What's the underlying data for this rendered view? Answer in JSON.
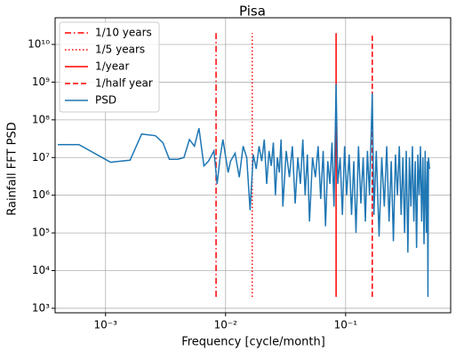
{
  "chart_data": {
    "type": "line",
    "title": "Pisa",
    "xlabel": "Frequency [cycle/month]",
    "ylabel": "Rainfall FFT PSD",
    "xscale": "log",
    "yscale": "log",
    "xlim": [
      0.00038,
      0.75
    ],
    "ylim": [
      760,
      51000000000
    ],
    "xticks": [
      {
        "value": 0.001,
        "label": "10⁻³"
      },
      {
        "value": 0.01,
        "label": "10⁻²"
      },
      {
        "value": 0.1,
        "label": "10⁻¹"
      }
    ],
    "yticks": [
      {
        "value": 1000,
        "label": "10³"
      },
      {
        "value": 10000,
        "label": "10⁴"
      },
      {
        "value": 100000,
        "label": "10⁵"
      },
      {
        "value": 1000000,
        "label": "10⁶"
      },
      {
        "value": 10000000,
        "label": "10⁷"
      },
      {
        "value": 100000000,
        "label": "10⁸"
      },
      {
        "value": 1000000000,
        "label": "10⁹"
      },
      {
        "value": 10000000000,
        "label": "10¹⁰"
      }
    ],
    "grid": true,
    "legend": "upper left",
    "series": [
      {
        "name": "1/10 years",
        "color": "#ff0000",
        "linestyle": "dashdot",
        "x": [
          0.00833,
          0.00833
        ],
        "values": [
          2000,
          20000000000
        ]
      },
      {
        "name": "1/5 years",
        "color": "#ff0000",
        "linestyle": "dotted",
        "x": [
          0.01667,
          0.01667
        ],
        "values": [
          2000,
          20000000000
        ]
      },
      {
        "name": "1/year",
        "color": "#ff0000",
        "linestyle": "solid",
        "x": [
          0.0833,
          0.0833
        ],
        "values": [
          2000,
          20000000000
        ]
      },
      {
        "name": "1/half year",
        "color": "#ff0000",
        "linestyle": "dashed",
        "x": [
          0.1667,
          0.1667
        ],
        "values": [
          2000,
          20000000000
        ]
      },
      {
        "name": "PSD",
        "color": "#1f77b4",
        "linestyle": "solid",
        "x": [
          0.0004,
          0.0006,
          0.0011,
          0.0016,
          0.002,
          0.0026,
          0.003,
          0.0034,
          0.004,
          0.0045,
          0.005,
          0.0055,
          0.006,
          0.0066,
          0.0072,
          0.008,
          0.0085,
          0.009,
          0.0095,
          0.0105,
          0.011,
          0.012,
          0.013,
          0.014,
          0.015,
          0.016,
          0.017,
          0.018,
          0.019,
          0.02,
          0.021,
          0.022,
          0.023,
          0.024,
          0.025,
          0.026,
          0.027,
          0.028,
          0.029,
          0.03,
          0.032,
          0.034,
          0.036,
          0.038,
          0.04,
          0.042,
          0.044,
          0.046,
          0.048,
          0.05,
          0.053,
          0.056,
          0.059,
          0.062,
          0.065,
          0.068,
          0.071,
          0.074,
          0.077,
          0.08,
          0.0833,
          0.086,
          0.09,
          0.094,
          0.098,
          0.102,
          0.107,
          0.112,
          0.117,
          0.122,
          0.128,
          0.134,
          0.14,
          0.146,
          0.152,
          0.158,
          0.1667,
          0.172,
          0.18,
          0.19,
          0.2,
          0.21,
          0.22,
          0.23,
          0.24,
          0.25,
          0.26,
          0.27,
          0.28,
          0.29,
          0.3,
          0.31,
          0.32,
          0.33,
          0.34,
          0.35,
          0.36,
          0.37,
          0.38,
          0.39,
          0.4,
          0.41,
          0.42,
          0.43,
          0.44,
          0.45,
          0.46,
          0.47,
          0.48,
          0.485,
          0.49,
          0.5
        ],
        "values": [
          22000000,
          22000000,
          7500000,
          8500000,
          42000000,
          38000000,
          25000000,
          9000000,
          9000000,
          10000000,
          30000000,
          20000000,
          60000000,
          6000000,
          8000000,
          15000000,
          2000000,
          10000000,
          30000000,
          4000000,
          8000000,
          13000000,
          3000000,
          20000000,
          10000000,
          400000,
          12000000,
          5000000,
          20000000,
          8000000,
          30000000,
          2000000,
          15000000,
          6000000,
          25000000,
          1000000,
          10000000,
          4000000,
          30000000,
          500000,
          15000000,
          3000000,
          20000000,
          600000,
          10000000,
          2000000,
          30000000,
          1000000,
          12000000,
          200000,
          10000000,
          3000000,
          20000000,
          800000,
          15000000,
          150000,
          8000000,
          2000000,
          25000000,
          500000,
          900000000,
          2000000,
          10000000,
          300000,
          20000000,
          1000000,
          12000000,
          300000,
          8000000,
          100000,
          20000000,
          600000,
          10000000,
          200000,
          15000000,
          1000000,
          500000000,
          300000,
          15000000,
          80000,
          10000000,
          500000,
          20000000,
          200000,
          8000000,
          60000,
          12000000,
          1000000,
          20000000,
          300000,
          10000000,
          100000,
          15000000,
          30000,
          10000000,
          500000,
          20000000,
          200000,
          8000000,
          40000,
          12000000,
          1000000,
          20000000,
          200000,
          10000000,
          50000,
          15000000,
          100000,
          8000000,
          2000,
          10000000,
          5000000
        ]
      }
    ]
  }
}
